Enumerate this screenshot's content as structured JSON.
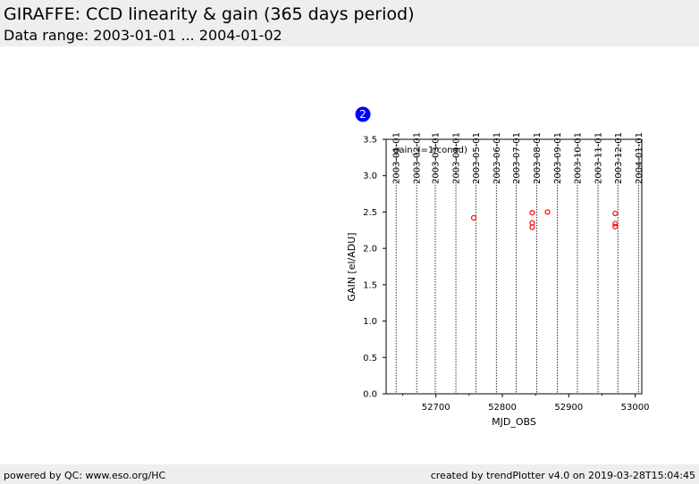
{
  "header": {
    "title": "GIRAFFE: CCD linearity & gain (365 days period)",
    "subtitle": "Data range: 2003-01-01 ... 2004-01-02"
  },
  "footer": {
    "left": "powered by QC: www.eso.org/HC",
    "right": "created by trendPlotter v4.0 on 2019-03-28T15:04:45"
  },
  "badge": {
    "label": "2",
    "color": "#0000ff"
  },
  "chart_data": {
    "type": "scatter",
    "annotation": "gain_(=1/conad)",
    "xlabel": "MJD_OBS",
    "ylabel": "GAIN [el/ADU]",
    "xlim": [
      52625,
      53010
    ],
    "ylim": [
      0,
      3.5
    ],
    "x_ticks": [
      52700,
      52800,
      52900,
      53000
    ],
    "y_ticks": [
      0.0,
      0.5,
      1.0,
      1.5,
      2.0,
      2.5,
      3.0,
      3.5
    ],
    "date_lines": [
      {
        "label": "2003-01-01",
        "mjd": 52640
      },
      {
        "label": "2003-02-01",
        "mjd": 52671
      },
      {
        "label": "2003-03-01",
        "mjd": 52699
      },
      {
        "label": "2003-04-01",
        "mjd": 52730
      },
      {
        "label": "2003-05-01",
        "mjd": 52760
      },
      {
        "label": "2003-06-01",
        "mjd": 52791
      },
      {
        "label": "2003-07-01",
        "mjd": 52821
      },
      {
        "label": "2003-08-01",
        "mjd": 52852
      },
      {
        "label": "2003-09-01",
        "mjd": 52883
      },
      {
        "label": "2003-10-01",
        "mjd": 52913
      },
      {
        "label": "2003-11-01",
        "mjd": 52944
      },
      {
        "label": "2003-12-01",
        "mjd": 52974
      },
      {
        "label": "2004-01-01",
        "mjd": 53005
      }
    ],
    "marker_color": "#ff0000",
    "points": [
      {
        "x": 52757,
        "y": 2.42
      },
      {
        "x": 52845,
        "y": 2.49
      },
      {
        "x": 52845,
        "y": 2.35
      },
      {
        "x": 52845,
        "y": 2.29
      },
      {
        "x": 52868,
        "y": 2.5
      },
      {
        "x": 52970,
        "y": 2.48
      },
      {
        "x": 52970,
        "y": 2.34
      },
      {
        "x": 52970,
        "y": 2.3
      }
    ]
  }
}
